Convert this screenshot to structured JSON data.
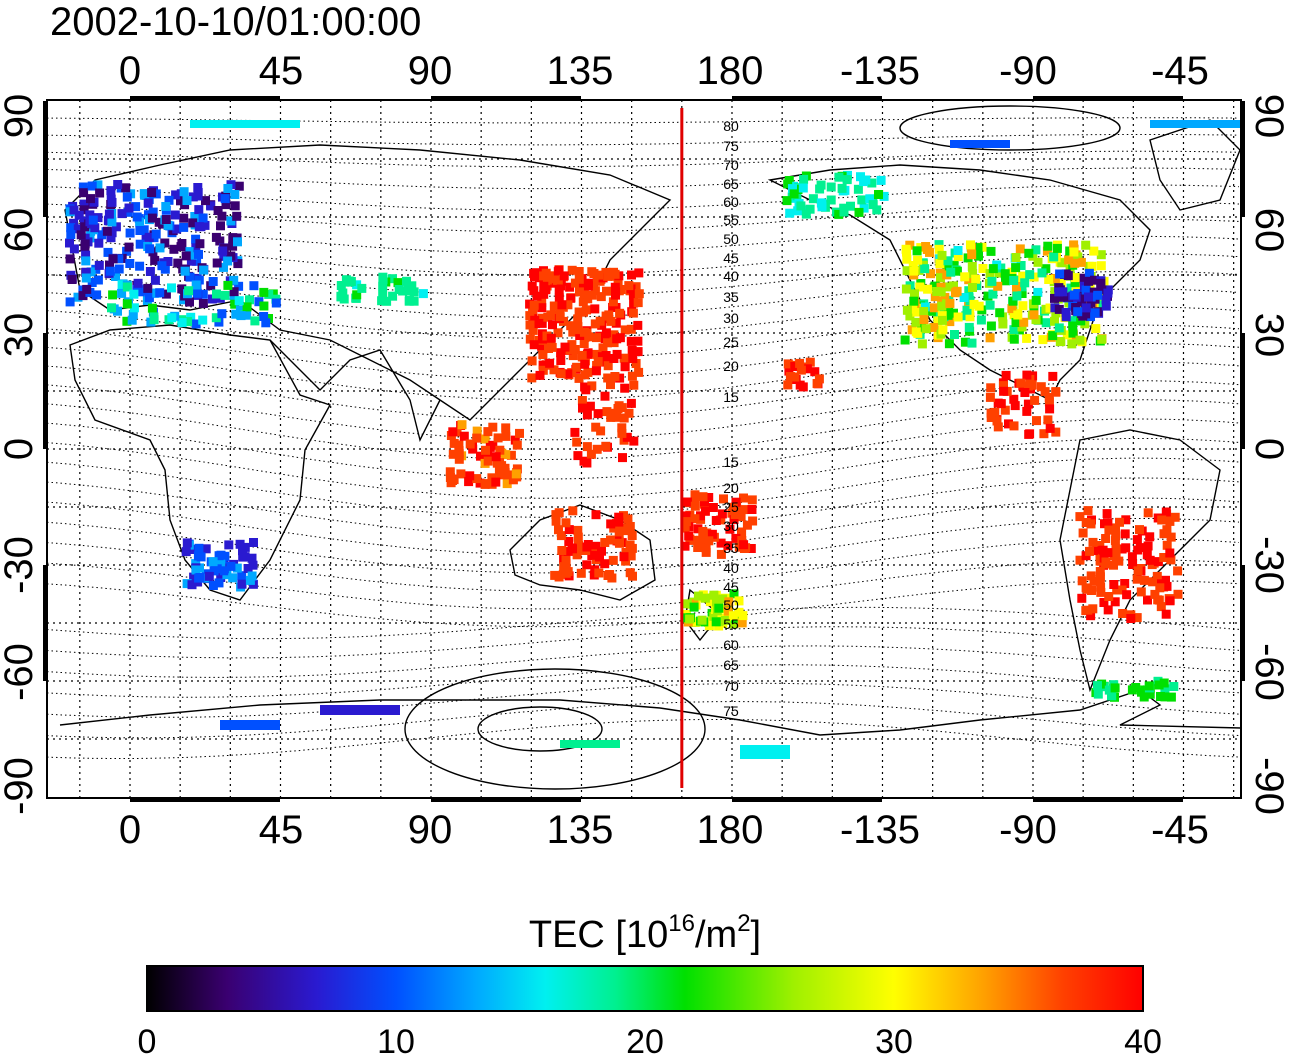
{
  "map": {
    "timestamp": "2002-10-10/01:00:00",
    "lon_ticks": [
      "0",
      "45",
      "90",
      "135",
      "180",
      "-135",
      "-90",
      "-45"
    ],
    "lat_ticks": [
      "90",
      "60",
      "30",
      "0",
      "-30",
      "-60",
      "-90"
    ],
    "marker_meridian_lon": 165,
    "marker_color": "#e00000",
    "contour_labels_north": [
      "80",
      "75",
      "70",
      "65",
      "60",
      "55",
      "50",
      "45",
      "40",
      "35",
      "30",
      "25",
      "20",
      "15"
    ],
    "contour_labels_south": [
      "15",
      "20",
      "25",
      "30",
      "35",
      "40",
      "45",
      "50",
      "55",
      "60",
      "65",
      "70",
      "75"
    ]
  },
  "colorbar": {
    "title_prefix": "TEC  [10",
    "title_sup1": "16",
    "title_mid": "/m",
    "title_sup2": "2",
    "title_suffix": "]",
    "tick_labels": [
      "0",
      "10",
      "20",
      "30",
      "40"
    ],
    "range": [
      0,
      40
    ],
    "colors": [
      "#000000",
      "#3a0070",
      "#2a1ad0",
      "#0050ff",
      "#00a8ff",
      "#00f0f0",
      "#00f090",
      "#00e000",
      "#a0f000",
      "#ffff00",
      "#ffa000",
      "#ff4000",
      "#ff0000"
    ]
  }
}
